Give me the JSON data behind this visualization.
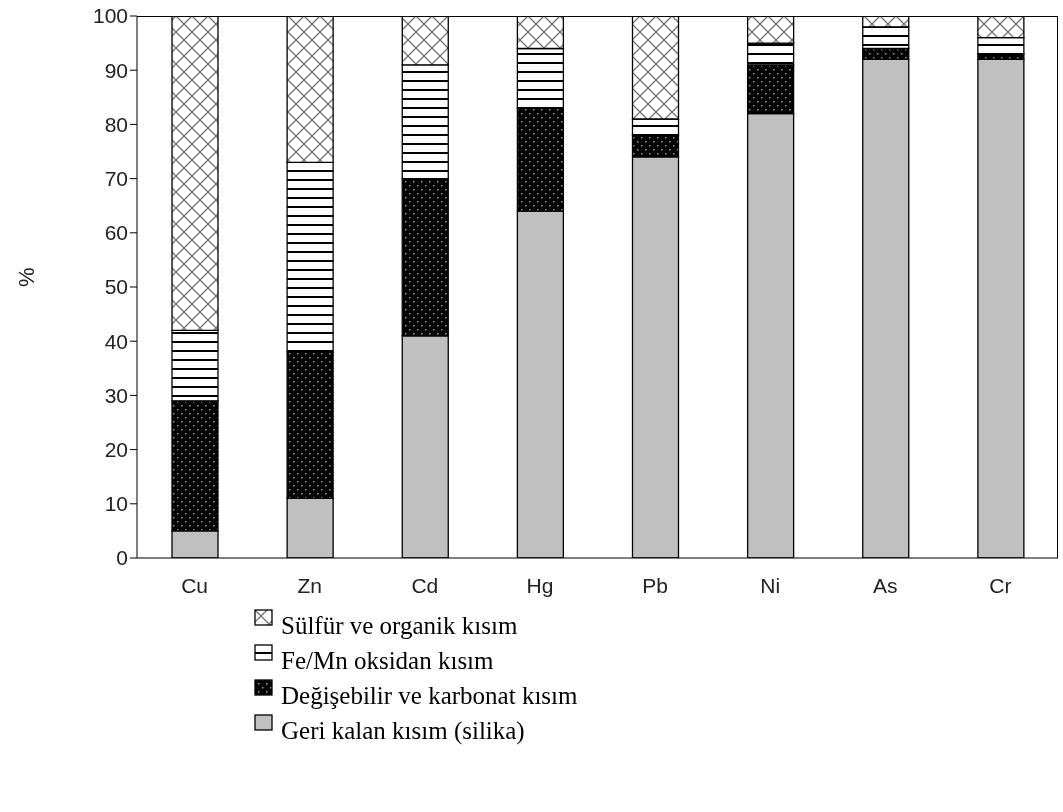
{
  "chart_data": {
    "type": "bar",
    "stacked": true,
    "ylabel": "%",
    "categories": [
      "Cu",
      "Zn",
      "Cd",
      "Hg",
      "Pb",
      "Ni",
      "As",
      "Cr"
    ],
    "series": [
      {
        "name": "Geri kalan kısım (silika)",
        "color": "#c0c0c0",
        "values": [
          5,
          11,
          41,
          64,
          74,
          82,
          92,
          92
        ]
      },
      {
        "name": "Değişebilir ve karbonat kısım",
        "color": "#000000",
        "values": [
          24,
          27,
          29,
          19,
          4,
          9,
          2,
          1
        ]
      },
      {
        "name": "Fe/Mn oksidan kısım",
        "color": "#000000",
        "values": [
          13,
          35,
          21,
          11,
          3,
          4,
          4,
          3
        ]
      },
      {
        "name": "Sülfür ve organik kısım",
        "color": "#000000",
        "values": [
          58,
          27,
          9,
          6,
          19,
          5,
          2,
          4
        ]
      }
    ],
    "ylim": [
      0,
      100
    ],
    "yticks": [
      0,
      10,
      20,
      30,
      40,
      50,
      60,
      70,
      80,
      90,
      100
    ],
    "grid": false,
    "legend": "bottom"
  }
}
